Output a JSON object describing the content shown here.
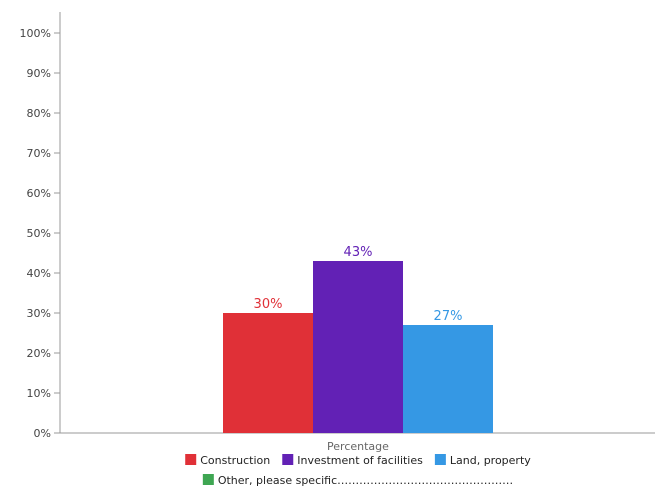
{
  "chart_data": {
    "type": "bar",
    "categories": [
      "Percentage"
    ],
    "series": [
      {
        "name": "Construction",
        "values": [
          30
        ],
        "label": "30%",
        "color": "#e03037"
      },
      {
        "name": "Investment of facilities",
        "values": [
          43
        ],
        "label": "43%",
        "color": "#6221b5"
      },
      {
        "name": "Land, property",
        "values": [
          27
        ],
        "label": "27%",
        "color": "#3598e4"
      },
      {
        "name": "Other, please specific…………………………………………",
        "values": [
          0
        ],
        "label": "",
        "color": "#3ea652"
      }
    ],
    "yticks": [
      "0%",
      "10%",
      "20%",
      "30%",
      "40%",
      "50%",
      "60%",
      "70%",
      "80%",
      "90%",
      "100%"
    ],
    "ylim": [
      0,
      100
    ],
    "grid": false,
    "legend_position": "bottom-center",
    "axis_color": "#999999"
  }
}
